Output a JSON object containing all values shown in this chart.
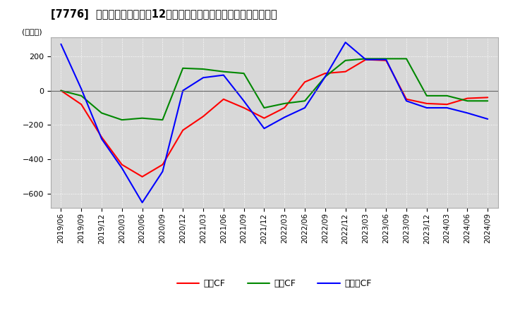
{
  "title": "[7776]  キャッシュフローの12か月移動合計の対前年同期増減額の推移",
  "ylabel": "(百万円)",
  "ylim": [
    -680,
    310
  ],
  "yticks": [
    -600,
    -400,
    -200,
    0,
    200
  ],
  "background_color": "#ffffff",
  "plot_background": "#d8d8d8",
  "legend": [
    "営業CF",
    "投資CF",
    "フリーCF"
  ],
  "line_colors": [
    "#ff0000",
    "#008800",
    "#0000ff"
  ],
  "x_labels": [
    "2019/06",
    "2019/09",
    "2019/12",
    "2020/03",
    "2020/06",
    "2020/09",
    "2020/12",
    "2021/03",
    "2021/06",
    "2021/09",
    "2021/12",
    "2022/03",
    "2022/06",
    "2022/09",
    "2022/12",
    "2023/03",
    "2023/06",
    "2023/09",
    "2023/12",
    "2024/03",
    "2024/06",
    "2024/09"
  ],
  "op_cf": [
    0,
    -80,
    -270,
    -430,
    -500,
    -430,
    -230,
    -150,
    -50,
    -100,
    -160,
    -100,
    50,
    100,
    110,
    180,
    175,
    -50,
    -75,
    -80,
    -45,
    -40
  ],
  "inv_cf": [
    0,
    -30,
    -130,
    -170,
    -160,
    -170,
    130,
    125,
    110,
    100,
    -100,
    -75,
    -60,
    80,
    175,
    185,
    185,
    185,
    -30,
    -30,
    -60,
    -60
  ],
  "free_cf": [
    270,
    10,
    -280,
    -450,
    -650,
    -470,
    0,
    75,
    90,
    -60,
    -220,
    -155,
    -100,
    80,
    280,
    180,
    180,
    -60,
    -100,
    -100,
    -130,
    -165
  ]
}
